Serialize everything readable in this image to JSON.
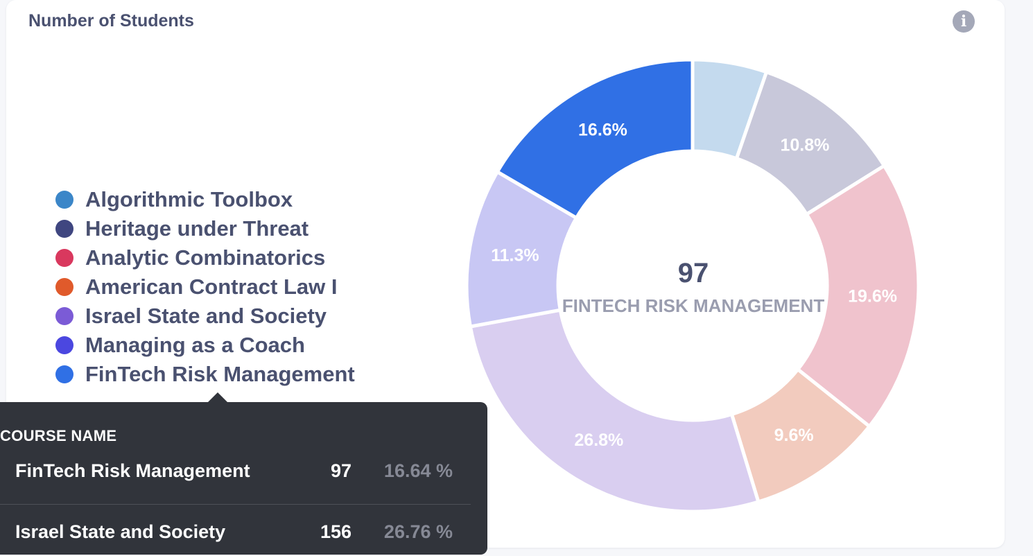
{
  "card": {
    "title": "Number of Students",
    "info_icon": "info-icon"
  },
  "legend": [
    {
      "label": "Algorithmic Toolbox",
      "color": "#3b86c8"
    },
    {
      "label": "Heritage under Threat",
      "color": "#3f4680"
    },
    {
      "label": "Analytic Combinatorics",
      "color": "#d9385e"
    },
    {
      "label": "American Contract Law I",
      "color": "#e05a2b"
    },
    {
      "label": "Israel State and Society",
      "color": "#7b5bd6"
    },
    {
      "label": "Managing as a Coach",
      "color": "#4b47e0"
    },
    {
      "label": "FinTech Risk Management",
      "color": "#3070e5"
    }
  ],
  "center": {
    "value": "97",
    "label": "FINTECH RISK MANAGEMENT"
  },
  "chart_data": {
    "type": "pie",
    "title": "Number of Students",
    "categories": [
      "Algorithmic Toolbox",
      "Heritage under Threat",
      "Analytic Combinatorics",
      "American Contract Law I",
      "Israel State and Society",
      "Managing as a Coach",
      "FinTech Risk Management"
    ],
    "values": [
      5.3,
      10.8,
      19.6,
      9.6,
      26.8,
      11.3,
      16.6
    ],
    "labels": [
      "",
      "10.8%",
      "19.6%",
      "9.6%",
      "26.8%",
      "11.3%",
      "16.6%"
    ],
    "colors": [
      "#c4daee",
      "#c8c8da",
      "#f0c3cd",
      "#f2cbbe",
      "#d9cef0",
      "#c8c7f4",
      "#3070e5"
    ],
    "highlighted": "FinTech Risk Management"
  },
  "tooltip": {
    "header": "COURSE NAME",
    "rows": [
      {
        "name": "FinTech Risk Management",
        "count": "97",
        "pct": "16.64 %"
      },
      {
        "name": "Israel State and Society",
        "count": "156",
        "pct": "26.76 %"
      }
    ]
  }
}
